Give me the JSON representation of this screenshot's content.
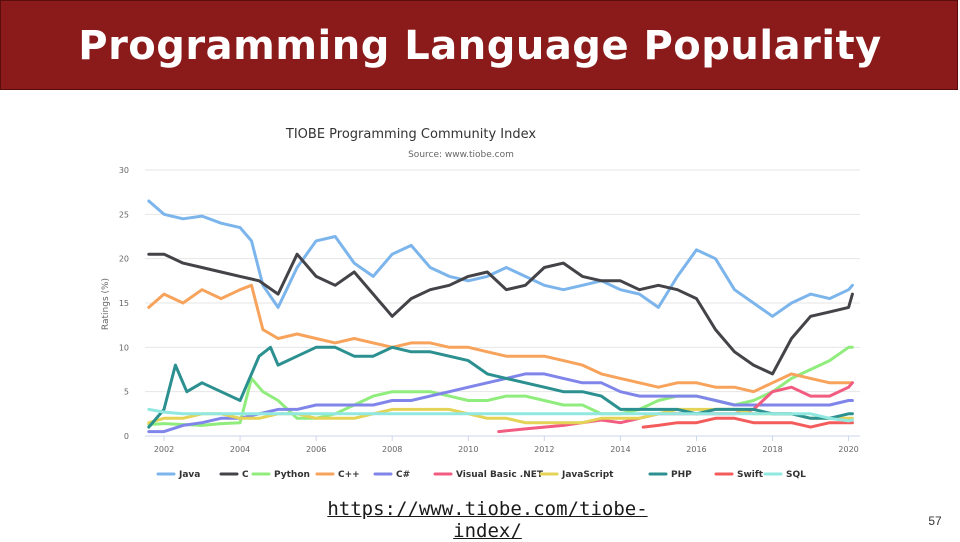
{
  "slide": {
    "title": "Programming Language Popularity",
    "link_text": "https://www.tiobe.com/tiobe-index/",
    "page_number": "57",
    "title_bar_color": "#8b1a1a"
  },
  "chart_data": {
    "type": "line",
    "title": "TIOBE Programming Community Index",
    "subtitle": "Source: www.tiobe.com",
    "xlabel": "",
    "ylabel": "Ratings (%)",
    "xlim": [
      2001.5,
      2020.3
    ],
    "ylim": [
      0,
      30
    ],
    "x_ticks": [
      "2002",
      "2004",
      "2006",
      "2008",
      "2010",
      "2012",
      "2014",
      "2016",
      "2018",
      "2020"
    ],
    "y_ticks": [
      "0",
      "5",
      "10",
      "15",
      "20",
      "25",
      "30"
    ],
    "grid": true,
    "legend_position": "bottom",
    "series": [
      {
        "name": "Java",
        "color": "#7cb5ec",
        "x": [
          2001.6,
          2002,
          2002.5,
          2003,
          2003.5,
          2004,
          2004.3,
          2004.6,
          2005,
          2005.5,
          2006,
          2006.5,
          2007,
          2007.5,
          2008,
          2008.5,
          2009,
          2009.5,
          2010,
          2010.5,
          2011,
          2011.5,
          2012,
          2012.5,
          2013,
          2013.5,
          2014,
          2014.5,
          2015,
          2015.5,
          2016,
          2016.5,
          2017,
          2017.5,
          2018,
          2018.5,
          2019,
          2019.5,
          2020,
          2020.1
        ],
        "y": [
          26.5,
          25,
          24.5,
          24.8,
          24,
          23.5,
          22,
          17,
          14.5,
          19,
          22,
          22.5,
          19.5,
          18,
          20.5,
          21.5,
          19,
          18,
          17.5,
          18,
          19,
          18,
          17,
          16.5,
          17,
          17.5,
          16.5,
          16,
          14.5,
          18,
          21,
          20,
          16.5,
          15,
          13.5,
          15,
          16,
          15.5,
          16.5,
          17
        ]
      },
      {
        "name": "C",
        "color": "#434348",
        "x": [
          2001.6,
          2002,
          2002.5,
          2003,
          2003.5,
          2004,
          2004.5,
          2005,
          2005.5,
          2006,
          2006.5,
          2007,
          2007.5,
          2008,
          2008.5,
          2009,
          2009.5,
          2010,
          2010.5,
          2011,
          2011.5,
          2012,
          2012.5,
          2013,
          2013.5,
          2014,
          2014.5,
          2015,
          2015.5,
          2016,
          2016.5,
          2017,
          2017.5,
          2018,
          2018.5,
          2019,
          2019.5,
          2020,
          2020.1
        ],
        "y": [
          20.5,
          20.5,
          19.5,
          19,
          18.5,
          18,
          17.5,
          16,
          20.5,
          18,
          17,
          18.5,
          16,
          13.5,
          15.5,
          16.5,
          17,
          18,
          18.5,
          16.5,
          17,
          19,
          19.5,
          18,
          17.5,
          17.5,
          16.5,
          17,
          16.5,
          15.5,
          12,
          9.5,
          8,
          7,
          11,
          13.5,
          14,
          14.5,
          16
        ]
      },
      {
        "name": "Python",
        "color": "#90ed7d",
        "x": [
          2001.6,
          2002,
          2002.5,
          2003,
          2003.5,
          2004,
          2004.3,
          2004.6,
          2005,
          2005.5,
          2006,
          2006.5,
          2007,
          2007.5,
          2008,
          2008.5,
          2009,
          2009.5,
          2010,
          2010.5,
          2011,
          2011.5,
          2012,
          2012.5,
          2013,
          2013.5,
          2014,
          2014.5,
          2015,
          2015.5,
          2016,
          2016.5,
          2017,
          2017.5,
          2018,
          2018.5,
          2019,
          2019.5,
          2020,
          2020.1
        ],
        "y": [
          1.3,
          1.4,
          1.3,
          1.2,
          1.4,
          1.5,
          6.5,
          5,
          4,
          2,
          2,
          2.5,
          3.5,
          4.5,
          5,
          5,
          5,
          4.5,
          4,
          4,
          4.5,
          4.5,
          4,
          3.5,
          3.5,
          2.5,
          2.5,
          3,
          4,
          4.5,
          4.5,
          4,
          3.5,
          4,
          5,
          6.5,
          7.5,
          8.5,
          10,
          10
        ]
      },
      {
        "name": "C++",
        "color": "#f7a35c",
        "x": [
          2001.6,
          2002,
          2002.5,
          2003,
          2003.5,
          2004,
          2004.3,
          2004.6,
          2005,
          2005.5,
          2006,
          2006.5,
          2007,
          2007.5,
          2008,
          2008.5,
          2009,
          2009.5,
          2010,
          2010.5,
          2011,
          2011.5,
          2012,
          2012.5,
          2013,
          2013.5,
          2014,
          2014.5,
          2015,
          2015.5,
          2016,
          2016.5,
          2017,
          2017.5,
          2018,
          2018.5,
          2019,
          2019.5,
          2020,
          2020.1
        ],
        "y": [
          14.5,
          16,
          15,
          16.5,
          15.5,
          16.5,
          17,
          12,
          11,
          11.5,
          11,
          10.5,
          11,
          10.5,
          10,
          10.5,
          10.5,
          10,
          10,
          9.5,
          9,
          9,
          9,
          8.5,
          8,
          7,
          6.5,
          6,
          5.5,
          6,
          6,
          5.5,
          5.5,
          5,
          6,
          7,
          6.5,
          6,
          6,
          6
        ]
      },
      {
        "name": "C#",
        "color": "#8085e9",
        "x": [
          2001.6,
          2002,
          2002.5,
          2003,
          2003.5,
          2004,
          2004.5,
          2005,
          2005.5,
          2006,
          2006.5,
          2007,
          2007.5,
          2008,
          2008.5,
          2009,
          2009.5,
          2010,
          2010.5,
          2011,
          2011.5,
          2012,
          2012.5,
          2013,
          2013.5,
          2014,
          2014.5,
          2015,
          2015.5,
          2016,
          2016.5,
          2017,
          2017.5,
          2018,
          2018.5,
          2019,
          2019.5,
          2020,
          2020.1
        ],
        "y": [
          0.5,
          0.5,
          1.2,
          1.5,
          2,
          2,
          2.5,
          3,
          3,
          3.5,
          3.5,
          3.5,
          3.5,
          4,
          4,
          4.5,
          5,
          5.5,
          6,
          6.5,
          7,
          7,
          6.5,
          6,
          6,
          5,
          4.5,
          4.5,
          4.5,
          4.5,
          4,
          3.5,
          3.5,
          3.5,
          3.5,
          3.5,
          3.5,
          4,
          4
        ]
      },
      {
        "name": "Visual Basic .NET",
        "color": "#f15c80",
        "x": [
          2010.8,
          2011.5,
          2012,
          2012.5,
          2013,
          2013.5,
          2014,
          2014.5,
          2015,
          2015.5,
          2016,
          2016.5,
          2017,
          2017.5,
          2018,
          2018.5,
          2019,
          2019.5,
          2020,
          2020.1
        ],
        "y": [
          0.5,
          0.8,
          1,
          1.2,
          1.5,
          1.8,
          1.5,
          2,
          2.5,
          2.5,
          2.5,
          2.5,
          2.5,
          3,
          5,
          5.5,
          4.5,
          4.5,
          5.5,
          6
        ]
      },
      {
        "name": "JavaScript",
        "color": "#e4d354",
        "x": [
          2001.6,
          2002,
          2002.5,
          2003,
          2003.5,
          2004,
          2004.5,
          2005,
          2005.5,
          2006,
          2006.5,
          2007,
          2007.5,
          2008,
          2008.5,
          2009,
          2009.5,
          2010,
          2010.5,
          2011,
          2011.5,
          2012,
          2012.5,
          2013,
          2013.5,
          2014,
          2014.5,
          2015,
          2015.5,
          2016,
          2016.5,
          2017,
          2017.5,
          2018,
          2018.5,
          2019,
          2019.5,
          2020,
          2020.1
        ],
        "y": [
          1.5,
          2,
          2,
          2.5,
          2.5,
          2,
          2,
          2.5,
          2.5,
          2,
          2,
          2,
          2.5,
          3,
          3,
          3,
          3,
          2.5,
          2,
          2,
          1.5,
          1.5,
          1.5,
          1.5,
          2,
          2,
          2,
          2.5,
          3,
          3,
          3,
          3,
          2.5,
          2.5,
          2.5,
          2,
          2,
          2,
          2
        ]
      },
      {
        "name": "PHP",
        "color": "#2b908f",
        "x": [
          2001.6,
          2002,
          2002.3,
          2002.6,
          2003,
          2003.5,
          2004,
          2004.5,
          2004.8,
          2005,
          2005.5,
          2006,
          2006.5,
          2007,
          2007.5,
          2008,
          2008.5,
          2009,
          2009.5,
          2010,
          2010.5,
          2011,
          2011.5,
          2012,
          2012.5,
          2013,
          2013.5,
          2014,
          2014.5,
          2015,
          2015.5,
          2016,
          2016.5,
          2017,
          2017.5,
          2018,
          2018.5,
          2019,
          2019.5,
          2020,
          2020.1
        ],
        "y": [
          1,
          3,
          8,
          5,
          6,
          5,
          4,
          9,
          10,
          8,
          9,
          10,
          10,
          9,
          9,
          10,
          9.5,
          9.5,
          9,
          8.5,
          7,
          6.5,
          6,
          5.5,
          5,
          5,
          4.5,
          3,
          3,
          3,
          3,
          2.5,
          3,
          3,
          3,
          2.5,
          2.5,
          2,
          2,
          2.5,
          2.5
        ]
      },
      {
        "name": "Swift",
        "color": "#f45b5b",
        "x": [
          2014.6,
          2015,
          2015.5,
          2016,
          2016.5,
          2017,
          2017.5,
          2018,
          2018.5,
          2019,
          2019.5,
          2020,
          2020.1
        ],
        "y": [
          1,
          1.2,
          1.5,
          1.5,
          2,
          2,
          1.5,
          1.5,
          1.5,
          1,
          1.5,
          1.5,
          1.5
        ]
      },
      {
        "name": "SQL",
        "color": "#91e8e1",
        "x": [
          2001.6,
          2002,
          2002.5,
          2003,
          2004,
          2005,
          2006,
          2008,
          2010,
          2012,
          2014,
          2016,
          2018,
          2018.5,
          2019,
          2019.5,
          2020,
          2020.1
        ],
        "y": [
          3,
          2.7,
          2.5,
          2.5,
          2.5,
          2.5,
          2.5,
          2.5,
          2.5,
          2.5,
          2.5,
          2.5,
          2.5,
          2.5,
          2.5,
          2,
          1.7,
          1.8
        ]
      }
    ]
  }
}
